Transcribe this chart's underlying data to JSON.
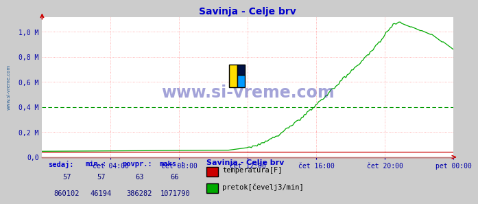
{
  "title": "Savinja - Celje brv",
  "title_color": "#0000cc",
  "bg_color": "#cccccc",
  "plot_bg_color": "#ffffff",
  "grid_h_color": "#ff9999",
  "grid_v_color": "#ff9999",
  "avg_line_color": "#009900",
  "watermark_text": "www.si-vreme.com",
  "watermark_color": "#3333aa",
  "sidebar_text": "www.si-vreme.com",
  "sidebar_color": "#336699",
  "x_tick_labels": [
    "čet 04:00",
    "čet 08:00",
    "čet 12:00",
    "čet 16:00",
    "čet 20:00",
    "pet 00:00"
  ],
  "y_tick_labels": [
    "0,0",
    "0,2 M",
    "0,4 M",
    "0,6 M",
    "0,8 M",
    "1,0 M"
  ],
  "y_tick_values": [
    0.0,
    0.2,
    0.4,
    0.6,
    0.8,
    1.0
  ],
  "ylim": [
    0.0,
    1.12
  ],
  "tick_color": "#0000aa",
  "temp_color": "#cc0000",
  "flow_color": "#00aa00",
  "axis_color": "#cc0000",
  "legend_title": "Savinja - Celje brv",
  "legend_title_color": "#0000cc",
  "legend_temp_label": "temperatura[F]",
  "legend_flow_label": "pretok[čevelj3/min]",
  "stats_headers": [
    "sedaj:",
    "min.:",
    "povpr.:",
    "maks.:"
  ],
  "stats_temp": [
    57,
    57,
    63,
    66
  ],
  "stats_flow": [
    860102,
    46194,
    386282,
    1071790
  ],
  "stats_color": "#000077",
  "stats_label_color": "#0000cc",
  "logo_yellow": "#ffdd00",
  "logo_blue": "#0099ff",
  "logo_dark": "#001144",
  "n_points": 288
}
